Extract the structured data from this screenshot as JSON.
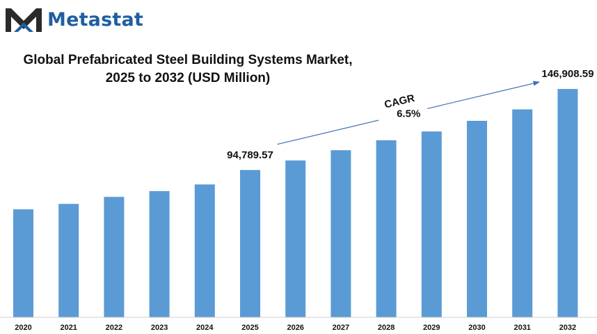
{
  "brand": {
    "name": "Metastat",
    "color": "#1f5fa0",
    "icon": "metastat-m-logo"
  },
  "chart_data": {
    "type": "bar",
    "title_line1": "Global Prefabricated Steel Building Systems Market,",
    "title_line2": "2025 to 2032 (USD Million)",
    "categories": [
      "2020",
      "2021",
      "2022",
      "2023",
      "2024",
      "2025",
      "2026",
      "2027",
      "2028",
      "2029",
      "2030",
      "2031",
      "2032"
    ],
    "values": [
      69500,
      73000,
      77500,
      81200,
      85500,
      94789.57,
      100900,
      107500,
      113900,
      119600,
      126400,
      133800,
      146908.59
    ],
    "data_labels": [
      {
        "category": "2025",
        "text": "94,789.57"
      },
      {
        "category": "2032",
        "text": "146,908.59"
      }
    ],
    "annotation": {
      "cagr_label": "CAGR",
      "cagr_value": "6.5%",
      "from": "2025",
      "to": "2032"
    },
    "bar_color": "#5b9bd5",
    "ylim": [
      0,
      155000
    ],
    "grid": false,
    "legend": "none"
  }
}
